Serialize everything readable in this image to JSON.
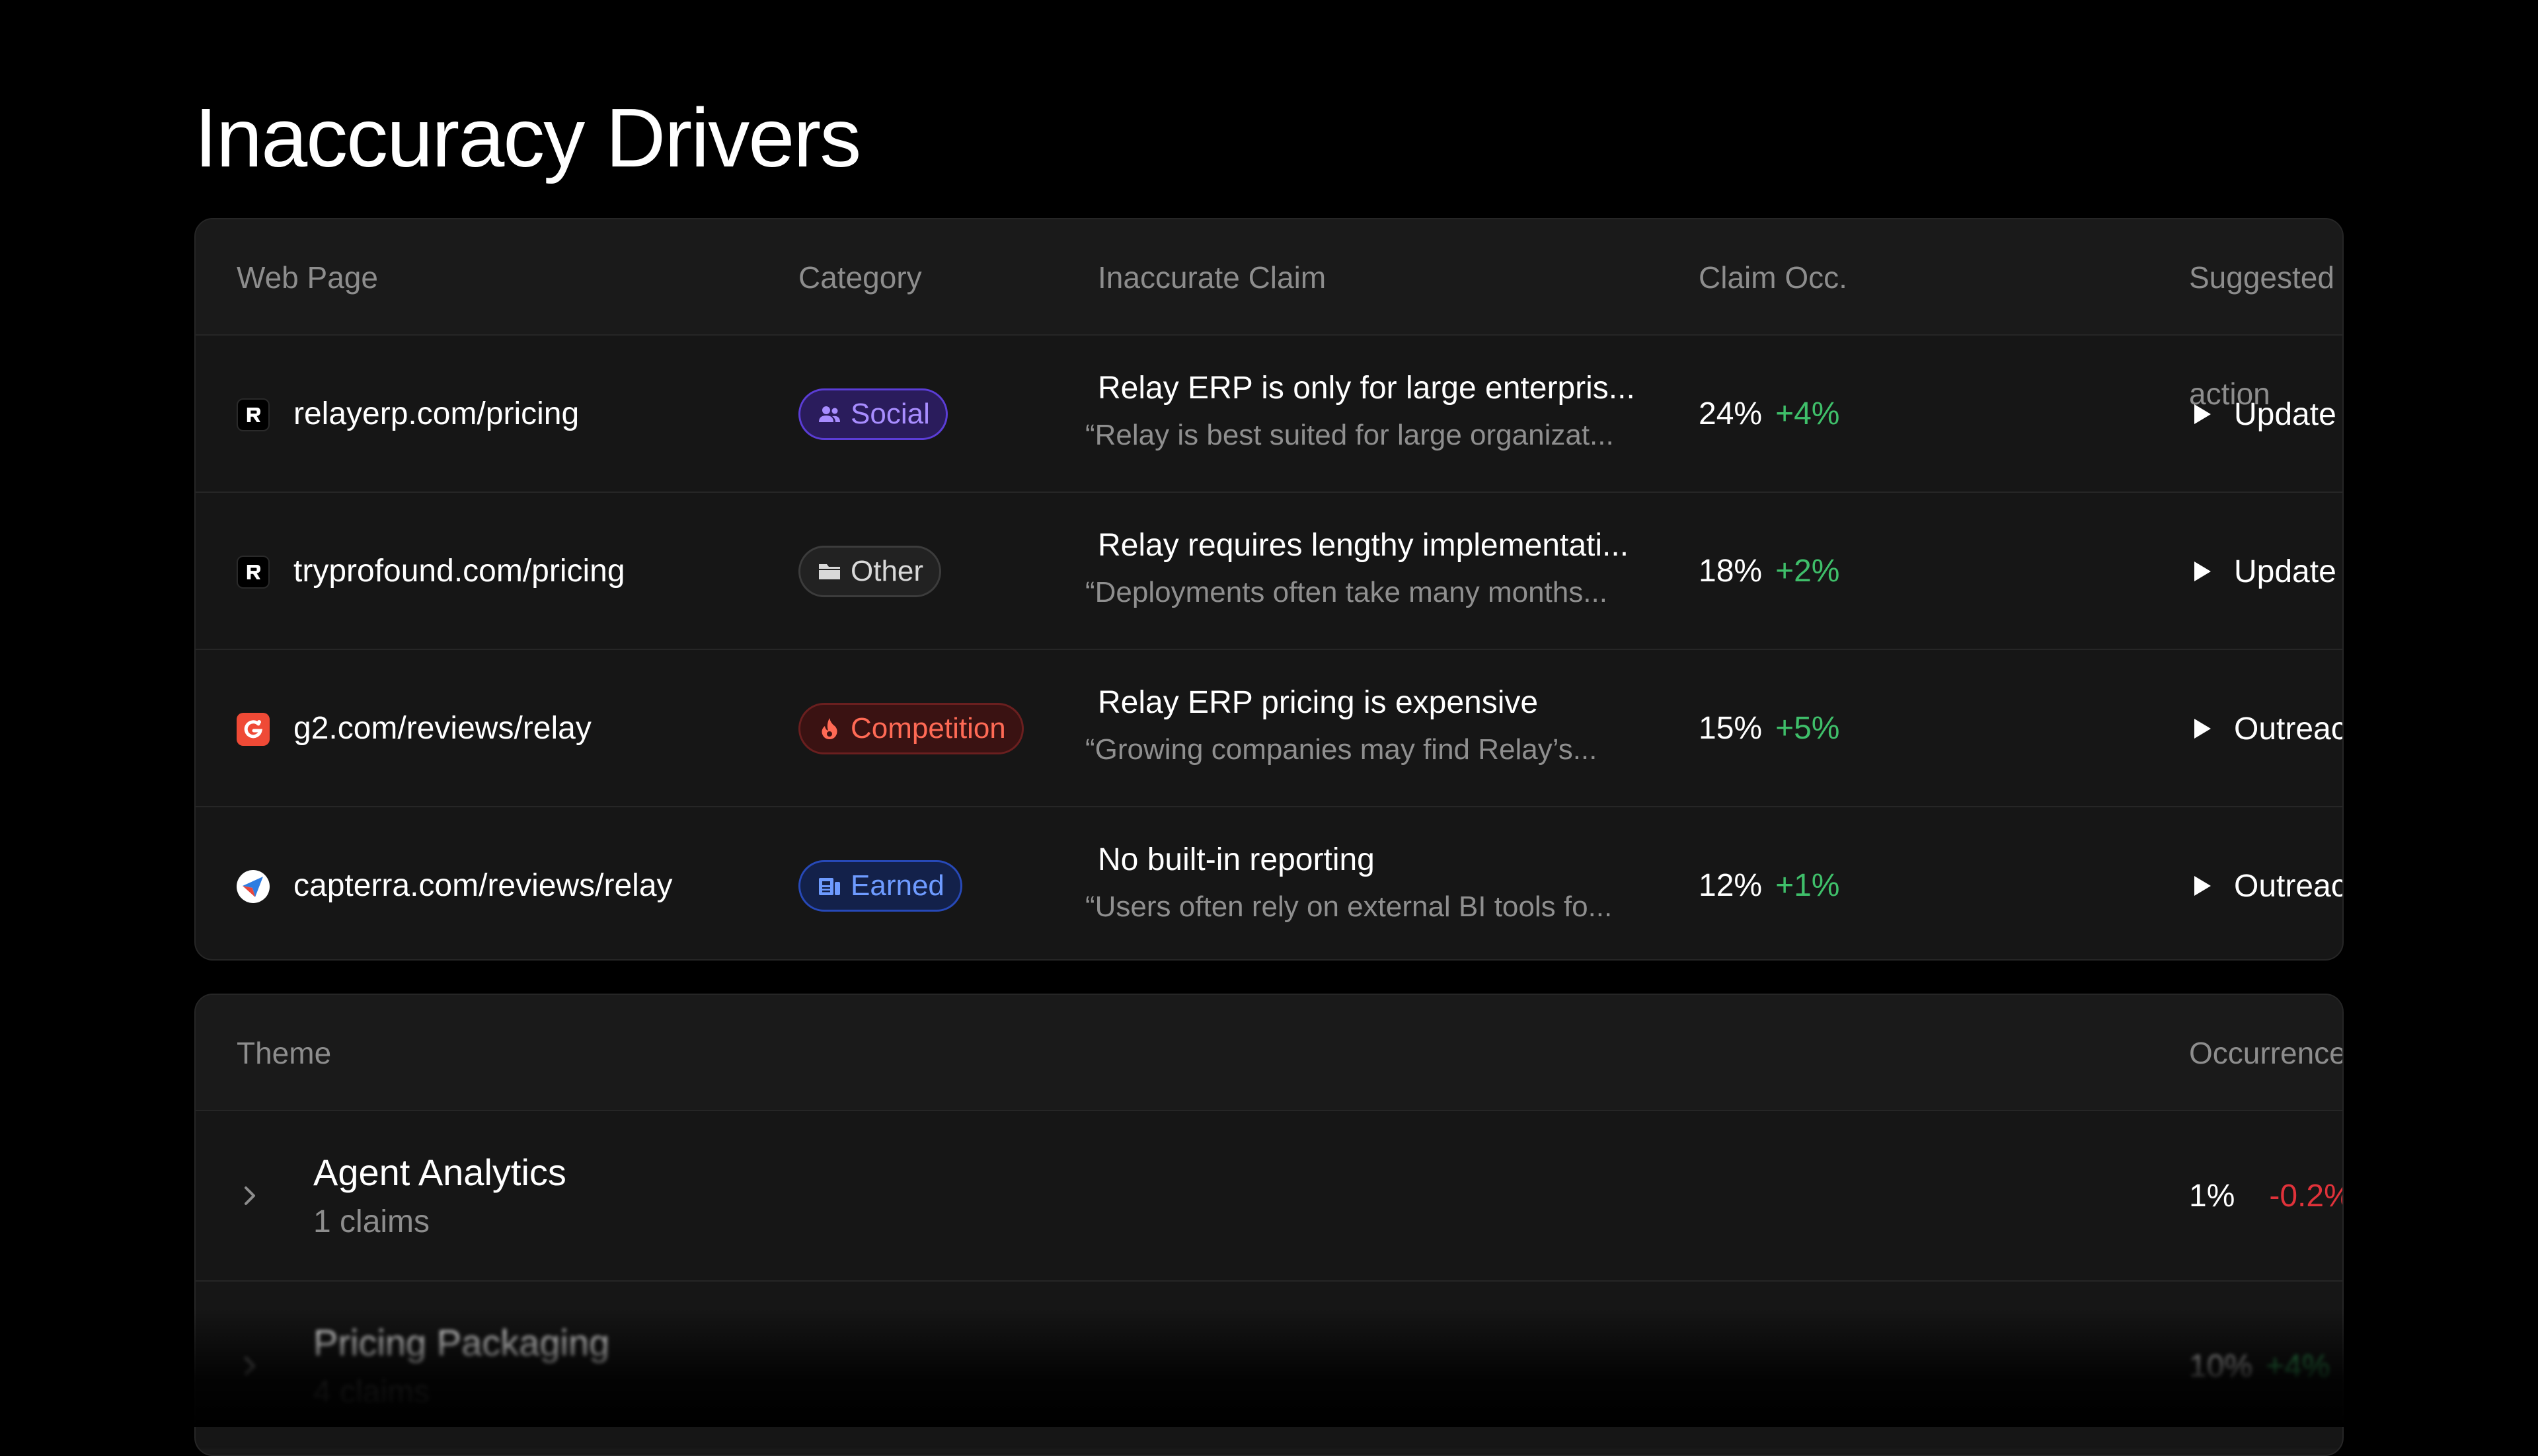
{
  "page": {
    "title": "Inaccuracy Drivers"
  },
  "drivers_table": {
    "columns": {
      "web_page": "Web Page",
      "category": "Category",
      "claim": "Inaccurate Claim",
      "occurrence": "Claim Occ.",
      "action": "Suggested action"
    },
    "rows": [
      {
        "site": "relayerp.com/pricing",
        "site_icon": "relay-logo-icon",
        "category": "Social",
        "category_icon": "users-icon",
        "claim_title": "Relay ERP is only for large enterpris...",
        "claim_quote": "“Relay is best suited for large organizat...",
        "occurrence": "24%",
        "change": "+4%",
        "action": "Update content"
      },
      {
        "site": "tryprofound.com/pricing",
        "site_icon": "relay-logo-icon",
        "category": "Other",
        "category_icon": "folder-icon",
        "claim_title": "Relay requires lengthy implementati...",
        "claim_quote": "“Deployments often take many months...",
        "occurrence": "18%",
        "change": "+2%",
        "action": "Update content"
      },
      {
        "site": "g2.com/reviews/relay",
        "site_icon": "g2-logo-icon",
        "category": "Competition",
        "category_icon": "flame-icon",
        "claim_title": "Relay ERP pricing is expensive",
        "claim_quote": "“Growing companies may find Relay’s...",
        "occurrence": "15%",
        "change": "+5%",
        "action": "Outreach"
      },
      {
        "site": "capterra.com/reviews/relay",
        "site_icon": "capterra-logo-icon",
        "category": "Earned",
        "category_icon": "newspaper-icon",
        "claim_title": "No built-in reporting",
        "claim_quote": "“Users often rely on external BI tools fo...",
        "occurrence": "12%",
        "change": "+1%",
        "action": "Outreach"
      }
    ]
  },
  "themes_table": {
    "columns": {
      "theme": "Theme",
      "occurrence": "Occurrence"
    },
    "rows": [
      {
        "name": "Agent Analytics",
        "count": "1 claims",
        "occurrence": "1%",
        "change": "-0.2%"
      },
      {
        "name": "Pricing Packaging",
        "count": "4 claims",
        "occurrence": "10%",
        "change": "+4%"
      }
    ]
  },
  "colors": {
    "background": "#000000",
    "card": "#161616",
    "positive": "#3fbf6a",
    "negative": "#e0323a",
    "social": "#a88dff",
    "competition": "#ff6a55",
    "earned": "#6e9bff"
  }
}
